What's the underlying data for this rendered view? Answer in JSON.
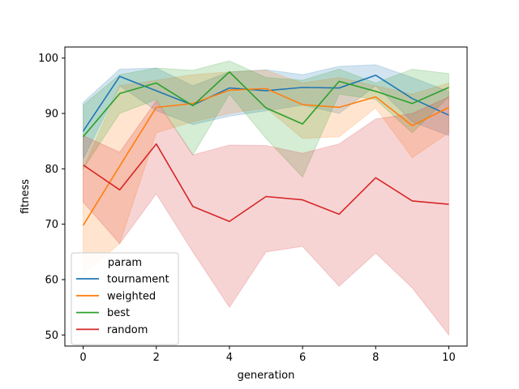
{
  "chart_data": {
    "type": "line",
    "title": "",
    "xlabel": "generation",
    "ylabel": "fitness",
    "xlim": [
      -0.5,
      10.5
    ],
    "ylim": [
      48,
      102
    ],
    "xticks": [
      0,
      2,
      4,
      6,
      8,
      10
    ],
    "yticks": [
      50,
      60,
      70,
      80,
      90,
      100
    ],
    "grid": false,
    "legend": {
      "title": "param",
      "placement": "lower-left"
    },
    "x": [
      0,
      1,
      2,
      3,
      4,
      5,
      6,
      7,
      8,
      9,
      10
    ],
    "series": [
      {
        "name": "tournament",
        "color": "#1f77b4",
        "values": [
          86.8,
          96.7,
          94.1,
          91.5,
          94.6,
          94.1,
          94.7,
          94.6,
          96.9,
          92.7,
          89.7
        ],
        "ci_low": [
          81.8,
          95.0,
          90.5,
          88.0,
          89.5,
          90.5,
          91.5,
          90.0,
          95.0,
          88.5,
          86.0
        ],
        "ci_high": [
          92.0,
          98.0,
          98.2,
          95.0,
          97.5,
          97.9,
          97.0,
          98.5,
          98.8,
          96.5,
          94.0
        ]
      },
      {
        "name": "weighted",
        "color": "#ff7f0e",
        "values": [
          69.8,
          80.5,
          91.1,
          91.8,
          94.2,
          94.5,
          91.6,
          91.1,
          93.0,
          87.8,
          91.1
        ],
        "ci_low": [
          61.0,
          66.5,
          86.5,
          88.5,
          90.0,
          91.0,
          85.5,
          85.8,
          91.0,
          82.0,
          86.5
        ],
        "ci_high": [
          80.0,
          95.0,
          96.0,
          97.0,
          97.5,
          97.8,
          95.5,
          96.5,
          95.0,
          93.5,
          95.5
        ]
      },
      {
        "name": "best",
        "color": "#2ca02c",
        "values": [
          85.8,
          93.6,
          95.5,
          91.4,
          97.5,
          91.0,
          88.1,
          95.8,
          94.0,
          91.8,
          94.7
        ],
        "ci_low": [
          80.0,
          90.0,
          92.5,
          82.5,
          93.5,
          85.5,
          78.5,
          93.5,
          92.5,
          86.5,
          93.0
        ],
        "ci_high": [
          91.5,
          97.0,
          98.2,
          97.8,
          99.5,
          96.5,
          96.0,
          98.0,
          95.5,
          98.0,
          97.2
        ]
      },
      {
        "name": "random",
        "color": "#d62728",
        "values": [
          80.7,
          76.2,
          84.5,
          73.2,
          70.5,
          75.0,
          74.4,
          71.8,
          78.4,
          74.2,
          73.6
        ],
        "ci_low": [
          74.0,
          66.5,
          75.5,
          65.0,
          55.0,
          65.0,
          66.0,
          58.8,
          64.8,
          58.5,
          50.0
        ],
        "ci_high": [
          86.0,
          83.0,
          92.3,
          82.5,
          84.3,
          84.2,
          82.8,
          84.5,
          89.0,
          90.0,
          93.0
        ]
      }
    ]
  }
}
